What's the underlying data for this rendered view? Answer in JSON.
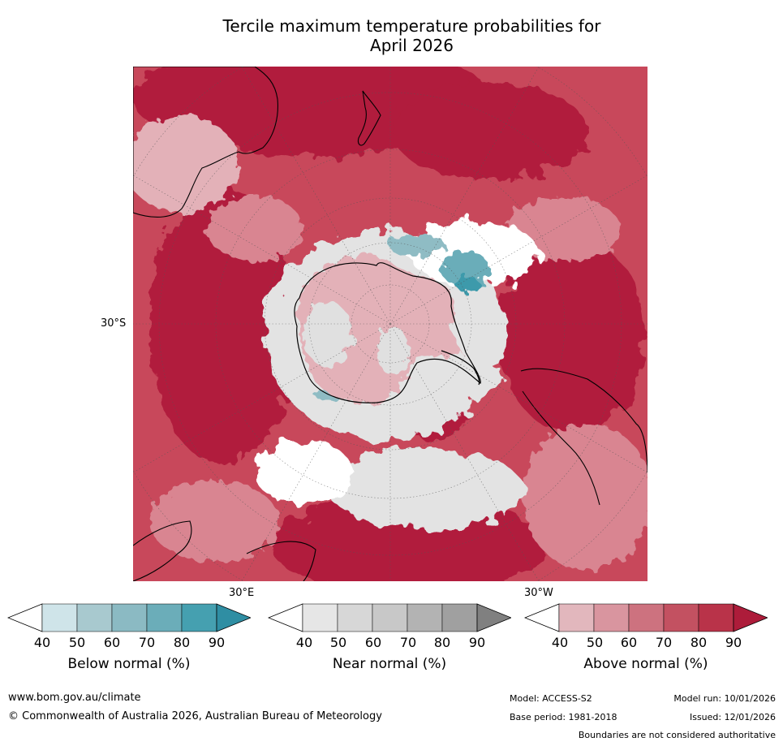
{
  "title_line1": "Tercile maximum temperature probabilities for",
  "title_line2": "April 2026",
  "map": {
    "projection": "south-polar-stereographic",
    "lat_label": "30°S",
    "lon_label_east": "30°E",
    "lon_label_west": "30°W",
    "colors": {
      "above_90": "#b11c3c",
      "above_80": "#c33a4f",
      "above_70": "#cc5c6c",
      "above_60": "#d98591",
      "above_50": "#e3b1b8",
      "near": "#e3e3e3",
      "below_60": "#8fbcc4",
      "below_80": "#3d9aab",
      "ocean_white": "#ffffff",
      "coast": "#000000"
    }
  },
  "colorbars": [
    {
      "title": "Below normal (%)",
      "ticks": [
        "40",
        "50",
        "60",
        "70",
        "80",
        "90"
      ],
      "colors": [
        "#ffffff",
        "#cfe4e9",
        "#a8c9cf",
        "#8bbac3",
        "#6badb9",
        "#45a0b0",
        "#2f8ea3"
      ]
    },
    {
      "title": "Near normal (%)",
      "ticks": [
        "40",
        "50",
        "60",
        "70",
        "80",
        "90"
      ],
      "colors": [
        "#ffffff",
        "#e6e6e6",
        "#d7d7d7",
        "#c8c8c8",
        "#b3b3b3",
        "#a0a0a0",
        "#808080"
      ]
    },
    {
      "title": "Above normal (%)",
      "ticks": [
        "40",
        "50",
        "60",
        "70",
        "80",
        "90"
      ],
      "colors": [
        "#ffffff",
        "#e2b7bd",
        "#d9959f",
        "#cd727f",
        "#c35161",
        "#b93349",
        "#ad1c3a"
      ]
    }
  ],
  "footer": {
    "website": "www.bom.gov.au/climate",
    "copyright": "© Commonwealth of Australia 2026, Australian Bureau of Meteorology",
    "model": "Model: ACCESS-S2",
    "model_run": "Model run: 10/01/2026",
    "base_period": "Base period: 1981-2018",
    "issued": "Issued: 12/01/2026",
    "disclaimer": "Boundaries are not considered authoritative"
  }
}
